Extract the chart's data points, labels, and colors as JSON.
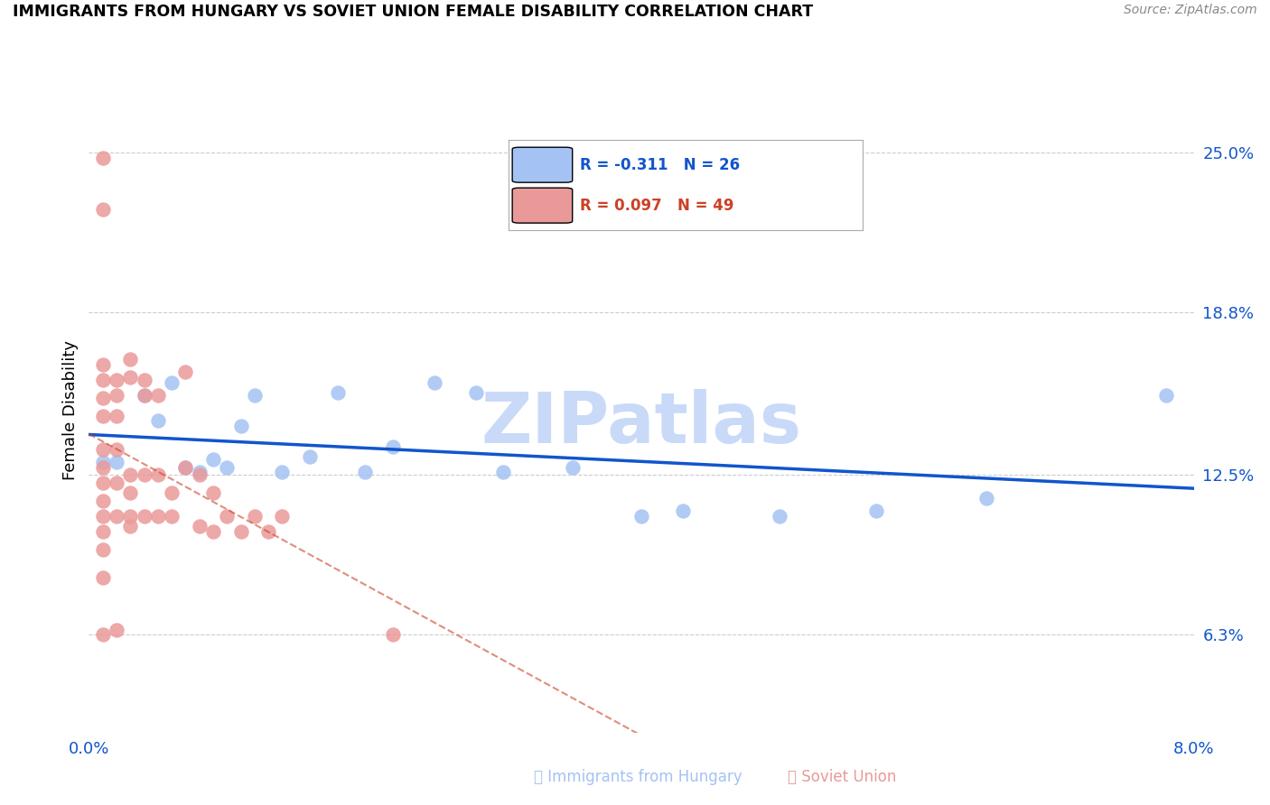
{
  "title": "IMMIGRANTS FROM HUNGARY VS SOVIET UNION FEMALE DISABILITY CORRELATION CHART",
  "source": "Source: ZipAtlas.com",
  "ylabel": "Female Disability",
  "ytick_labels": [
    "25.0%",
    "18.8%",
    "12.5%",
    "6.3%"
  ],
  "ytick_values": [
    0.25,
    0.188,
    0.125,
    0.063
  ],
  "xlim": [
    0.0,
    0.08
  ],
  "ylim": [
    0.025,
    0.275
  ],
  "hungary_color": "#a4c2f4",
  "soviet_color": "#ea9999",
  "hungary_line_color": "#1155cc",
  "soviet_line_color": "#cc4125",
  "background_color": "#ffffff",
  "grid_color": "#cccccc",
  "axis_label_color": "#1155cc",
  "title_color": "#000000",
  "watermark_text": "ZIPatlas",
  "watermark_color": "#c9daf8",
  "hungary_x": [
    0.001,
    0.002,
    0.004,
    0.005,
    0.006,
    0.007,
    0.008,
    0.009,
    0.01,
    0.011,
    0.012,
    0.014,
    0.016,
    0.018,
    0.02,
    0.022,
    0.025,
    0.028,
    0.03,
    0.035,
    0.04,
    0.043,
    0.05,
    0.057,
    0.065,
    0.078
  ],
  "hungary_y": [
    0.13,
    0.13,
    0.156,
    0.146,
    0.161,
    0.128,
    0.126,
    0.131,
    0.128,
    0.144,
    0.156,
    0.126,
    0.132,
    0.157,
    0.126,
    0.136,
    0.161,
    0.157,
    0.126,
    0.128,
    0.109,
    0.111,
    0.109,
    0.111,
    0.116,
    0.156
  ],
  "soviet_x": [
    0.001,
    0.001,
    0.001,
    0.001,
    0.001,
    0.001,
    0.001,
    0.001,
    0.001,
    0.001,
    0.001,
    0.001,
    0.001,
    0.001,
    0.001,
    0.002,
    0.002,
    0.002,
    0.002,
    0.002,
    0.002,
    0.002,
    0.003,
    0.003,
    0.003,
    0.003,
    0.003,
    0.003,
    0.004,
    0.004,
    0.004,
    0.004,
    0.005,
    0.005,
    0.005,
    0.006,
    0.006,
    0.007,
    0.007,
    0.008,
    0.008,
    0.009,
    0.009,
    0.01,
    0.011,
    0.012,
    0.013,
    0.014,
    0.022
  ],
  "soviet_y": [
    0.248,
    0.228,
    0.168,
    0.162,
    0.155,
    0.148,
    0.135,
    0.128,
    0.122,
    0.115,
    0.109,
    0.103,
    0.096,
    0.085,
    0.063,
    0.162,
    0.156,
    0.148,
    0.135,
    0.122,
    0.109,
    0.065,
    0.17,
    0.163,
    0.125,
    0.118,
    0.109,
    0.105,
    0.162,
    0.156,
    0.125,
    0.109,
    0.156,
    0.125,
    0.109,
    0.118,
    0.109,
    0.165,
    0.128,
    0.125,
    0.105,
    0.118,
    0.103,
    0.109,
    0.103,
    0.109,
    0.103,
    0.109,
    0.063
  ]
}
